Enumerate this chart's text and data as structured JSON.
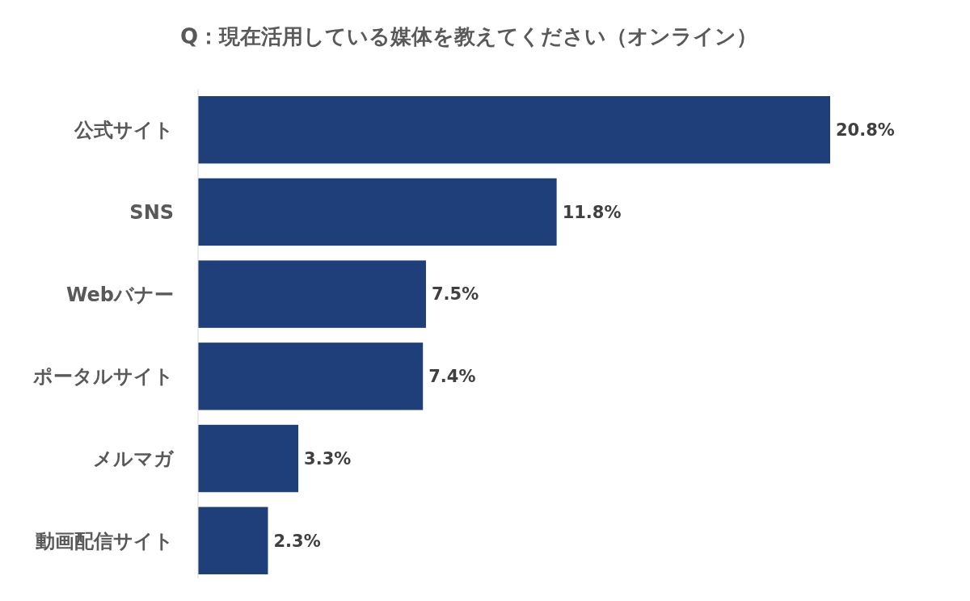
{
  "chart_data": {
    "type": "bar",
    "orientation": "horizontal",
    "title": "Q：現在活用している媒体を教えてください（オンライン）",
    "categories": [
      "公式サイト",
      "SNS",
      "Webバナー",
      "ポータルサイト",
      "メルマガ",
      "動画配信サイト"
    ],
    "values": [
      20.8,
      11.8,
      7.5,
      7.4,
      3.3,
      2.3
    ],
    "value_labels": [
      "20.8%",
      "11.8%",
      "7.5%",
      "7.4%",
      "3.3%",
      "2.3%"
    ],
    "color": "#1f3f7a"
  }
}
